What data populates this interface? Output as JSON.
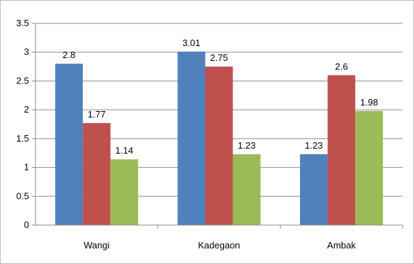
{
  "chart_data": {
    "type": "bar",
    "categories": [
      "Wangi",
      "Kadegaon",
      "Ambak"
    ],
    "series": [
      {
        "color": "#4f81bd",
        "values": [
          2.8,
          3.01,
          1.23
        ],
        "labels": [
          "2.8",
          "3.01",
          "1.23"
        ]
      },
      {
        "color": "#c0504d",
        "values": [
          1.77,
          2.75,
          2.6
        ],
        "labels": [
          "1.77",
          "2.75",
          "2.6"
        ]
      },
      {
        "color": "#9bbb59",
        "values": [
          1.14,
          1.23,
          1.98
        ],
        "labels": [
          "1.14",
          "1.23",
          "1.98"
        ]
      }
    ],
    "ylim": [
      0,
      3.5
    ],
    "yticks": [
      "0",
      "0.5",
      "1",
      "1.5",
      "2",
      "2.5",
      "3",
      "3.5"
    ],
    "grid": true,
    "legend": "none"
  }
}
